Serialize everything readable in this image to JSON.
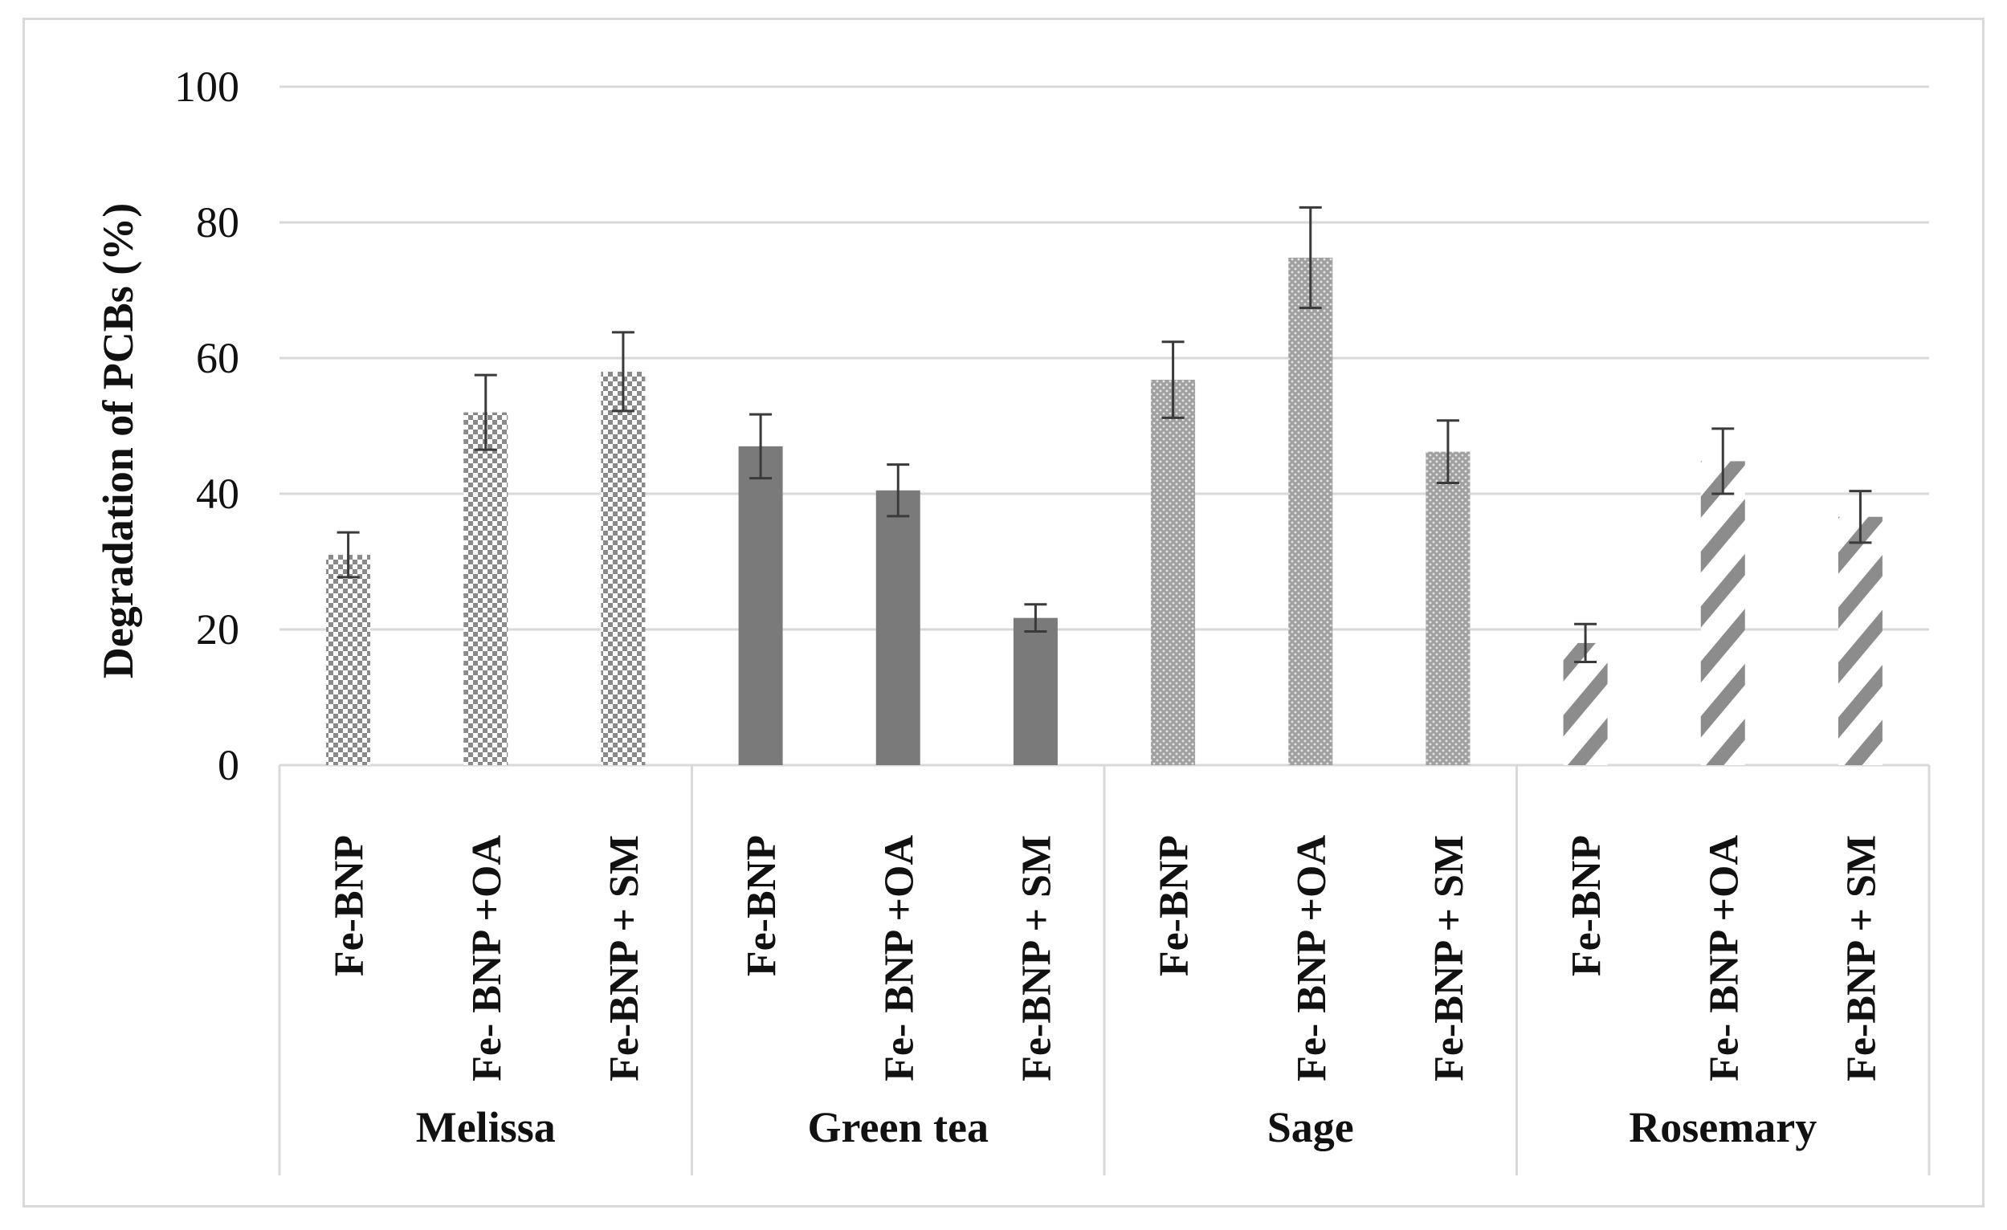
{
  "chart_data": {
    "type": "bar",
    "title": "",
    "ylabel": "Degradation of PCBs (%)",
    "xlabel": "",
    "ylim": [
      0,
      100
    ],
    "yticks": [
      0,
      20,
      40,
      60,
      80,
      100
    ],
    "grid": true,
    "legend": "none",
    "groups": [
      {
        "name": "Melissa",
        "pattern": "checker",
        "bars": [
          {
            "label": "Fe-BNP",
            "value": 31,
            "error": 3.3
          },
          {
            "label": "Fe- BNP +OA",
            "value": 52,
            "error": 5.5
          },
          {
            "label": "Fe-BNP + SM",
            "value": 58,
            "error": 5.8
          }
        ]
      },
      {
        "name": "Green tea",
        "pattern": "solid",
        "bars": [
          {
            "label": "Fe-BNP",
            "value": 47,
            "error": 4.7
          },
          {
            "label": "Fe- BNP +OA",
            "value": 40.5,
            "error": 3.8
          },
          {
            "label": "Fe-BNP + SM",
            "value": 21.7,
            "error": 2.0
          }
        ]
      },
      {
        "name": "Sage",
        "pattern": "dots",
        "bars": [
          {
            "label": "Fe-BNP",
            "value": 56.8,
            "error": 5.6
          },
          {
            "label": "Fe- BNP +OA",
            "value": 74.8,
            "error": 7.4
          },
          {
            "label": "Fe-BNP + SM",
            "value": 46.2,
            "error": 4.6
          }
        ]
      },
      {
        "name": "Rosemary",
        "pattern": "diagonal",
        "bars": [
          {
            "label": "Fe-BNP",
            "value": 18,
            "error": 2.8
          },
          {
            "label": "Fe- BNP +OA",
            "value": 44.8,
            "error": 4.8
          },
          {
            "label": "Fe-BNP + SM",
            "value": 36.6,
            "error": 3.8
          }
        ]
      }
    ],
    "colors": {
      "bar": "#7a7a7a",
      "bar_light": "#a9a9a9",
      "grid": "#d9d9d9",
      "error_bar": "#3a3a3a",
      "text": "#111111"
    }
  }
}
